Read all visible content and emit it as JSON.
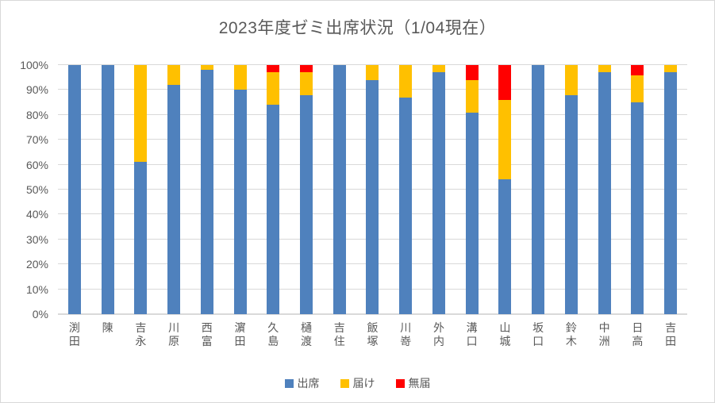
{
  "chart_data": {
    "type": "bar",
    "subtype": "stacked-100",
    "title": "2023年度ゼミ出席状況（1/04現在）",
    "categories": [
      "渕田",
      "陳",
      "吉永",
      "川原",
      "西富",
      "濵田",
      "久島",
      "樋渡",
      "吉住",
      "飯塚",
      "川嵜",
      "外内",
      "溝口",
      "山城",
      "坂口",
      "鈴木",
      "中洲",
      "日高",
      "吉田"
    ],
    "series": [
      {
        "name": "出席",
        "color": "#4F81BD",
        "values": [
          100,
          100,
          61,
          92,
          98,
          90,
          84,
          88,
          100,
          94,
          87,
          97,
          81,
          54,
          100,
          88,
          97,
          85,
          97
        ]
      },
      {
        "name": "届け",
        "color": "#FFC000",
        "values": [
          0,
          0,
          39,
          8,
          2,
          10,
          13,
          9,
          0,
          6,
          13,
          3,
          13,
          32,
          0,
          12,
          3,
          11,
          3
        ]
      },
      {
        "name": "無届",
        "color": "#FF0000",
        "values": [
          0,
          0,
          0,
          0,
          0,
          0,
          3,
          3,
          0,
          0,
          0,
          0,
          6,
          14,
          0,
          0,
          0,
          4,
          0
        ]
      }
    ],
    "y_axis": {
      "tick_labels": [
        "0%",
        "10%",
        "20%",
        "30%",
        "40%",
        "50%",
        "60%",
        "70%",
        "80%",
        "90%",
        "100%"
      ],
      "min": 0,
      "max": 100,
      "gridlines": true
    },
    "legend_position": "bottom",
    "colors": {
      "text": "#595959",
      "gridline": "#D9D9D9",
      "background": "#FFFFFF",
      "border": "#D9D9D9"
    }
  }
}
